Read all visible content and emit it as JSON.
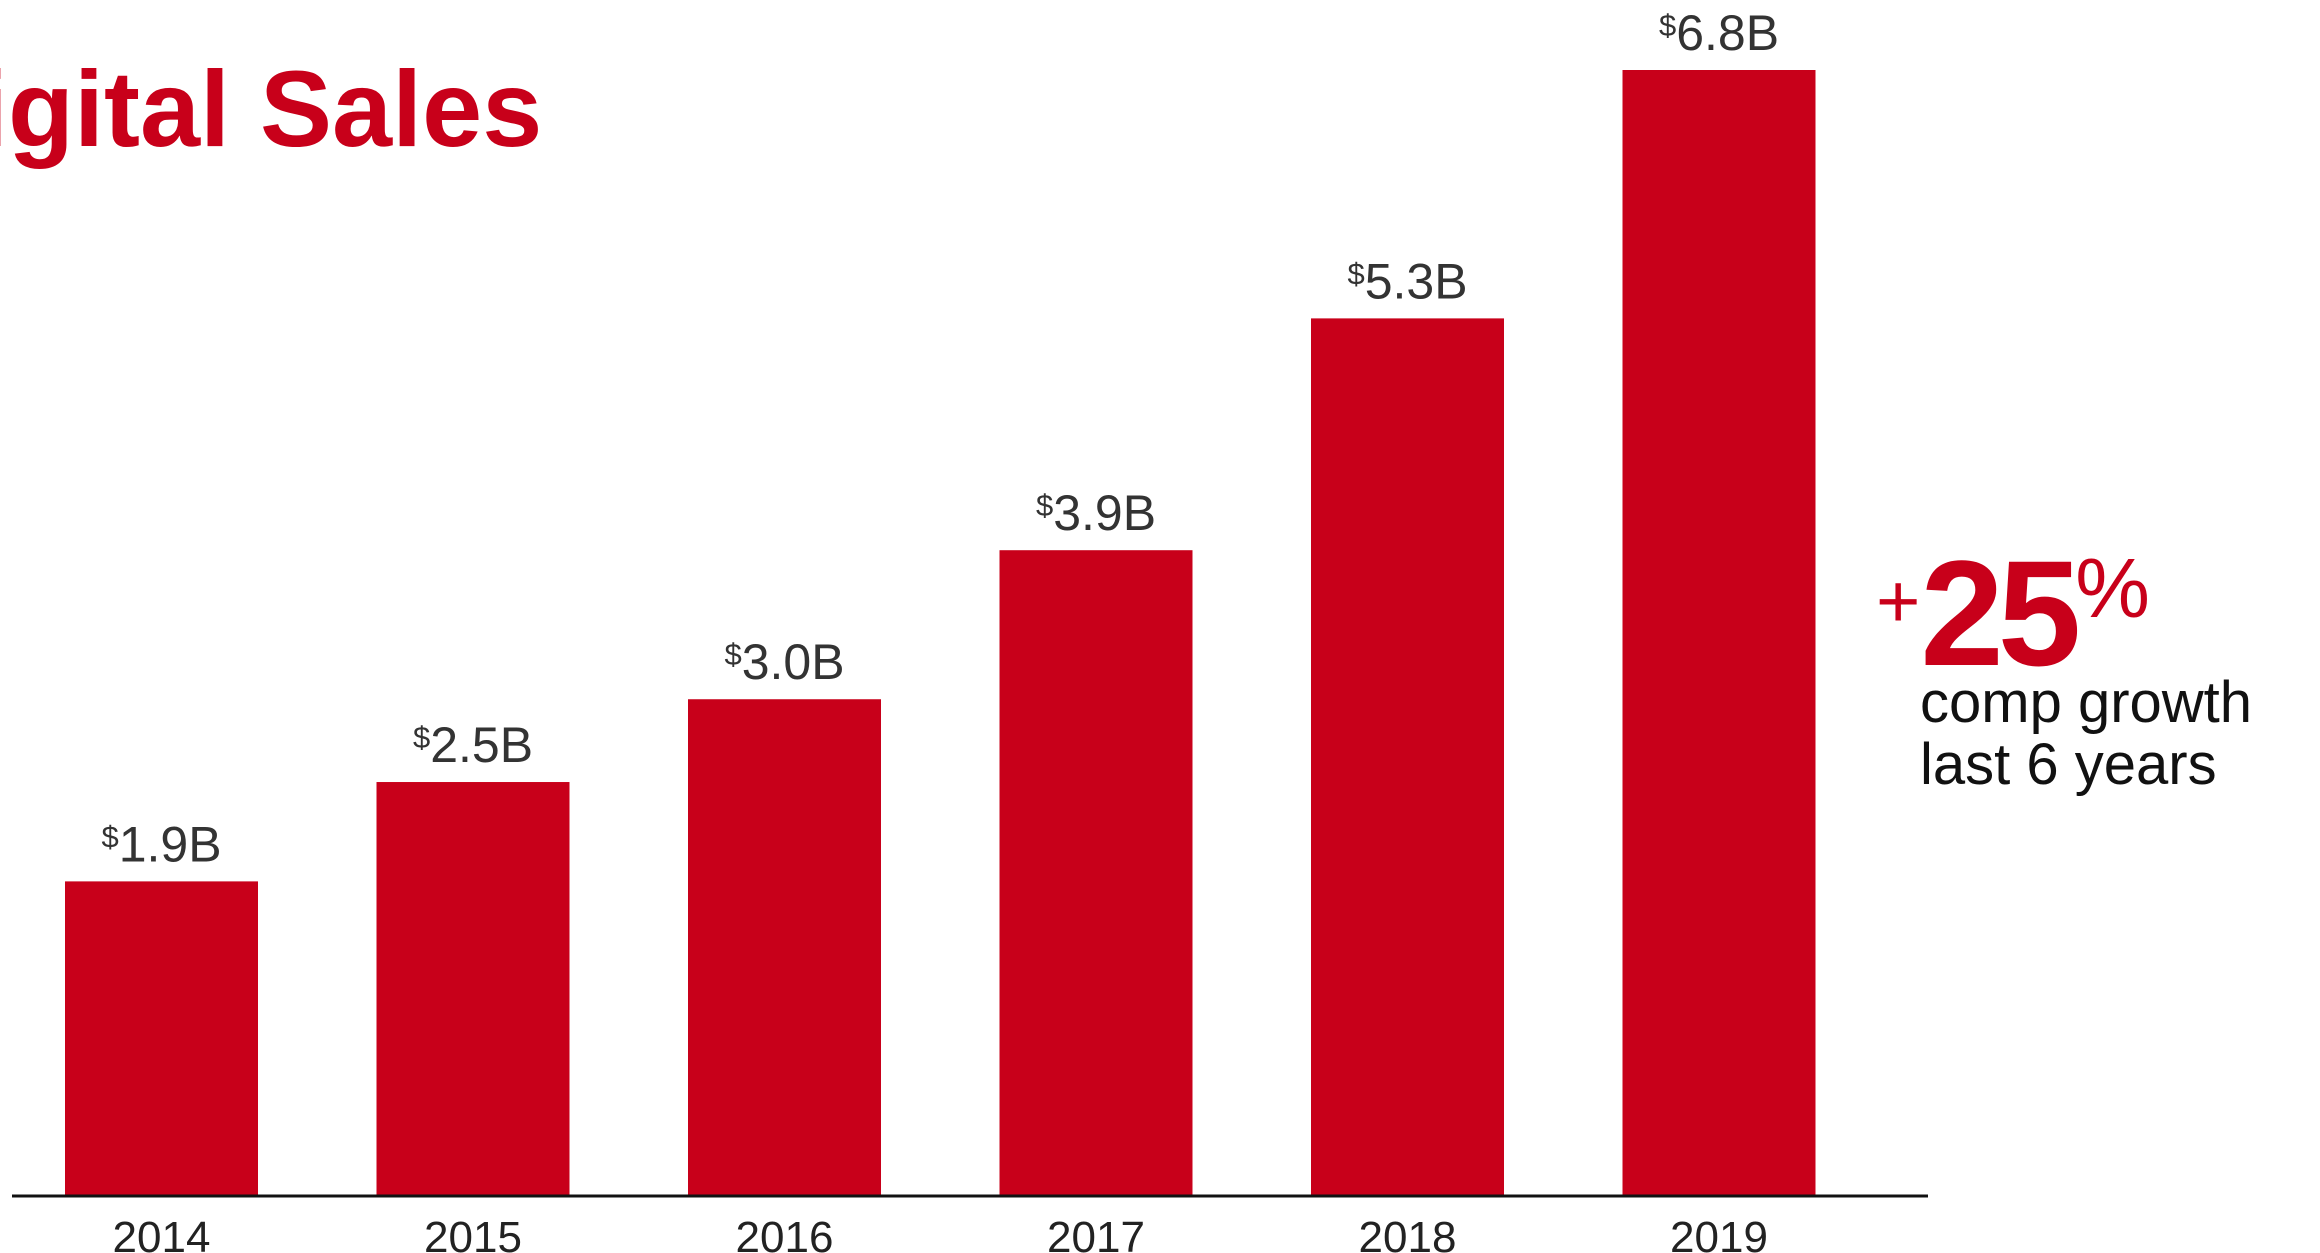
{
  "chart_data": {
    "type": "bar",
    "title": "igital Sales",
    "categories": [
      "2014",
      "2015",
      "2016",
      "2017",
      "2018",
      "2019"
    ],
    "values": [
      1.9,
      2.5,
      3.0,
      3.9,
      5.3,
      6.8
    ],
    "data_labels": [
      {
        "currency": "$",
        "text": "1.9B"
      },
      {
        "currency": "$",
        "text": "2.5B"
      },
      {
        "currency": "$",
        "text": "3.0B"
      },
      {
        "currency": "$",
        "text": "3.9B"
      },
      {
        "currency": "$",
        "text": "5.3B"
      },
      {
        "currency": "$",
        "text": "6.8B"
      }
    ],
    "unit": "B",
    "ylim": [
      0,
      6.8
    ],
    "grid": false,
    "bar_color": "#c8001a",
    "xlabel": "",
    "ylabel": ""
  },
  "callout": {
    "plus": "+",
    "number": "25",
    "percent": "%",
    "caption_line1": "comp growth",
    "caption_line2": "last 6 years",
    "color": "#c8001a"
  }
}
